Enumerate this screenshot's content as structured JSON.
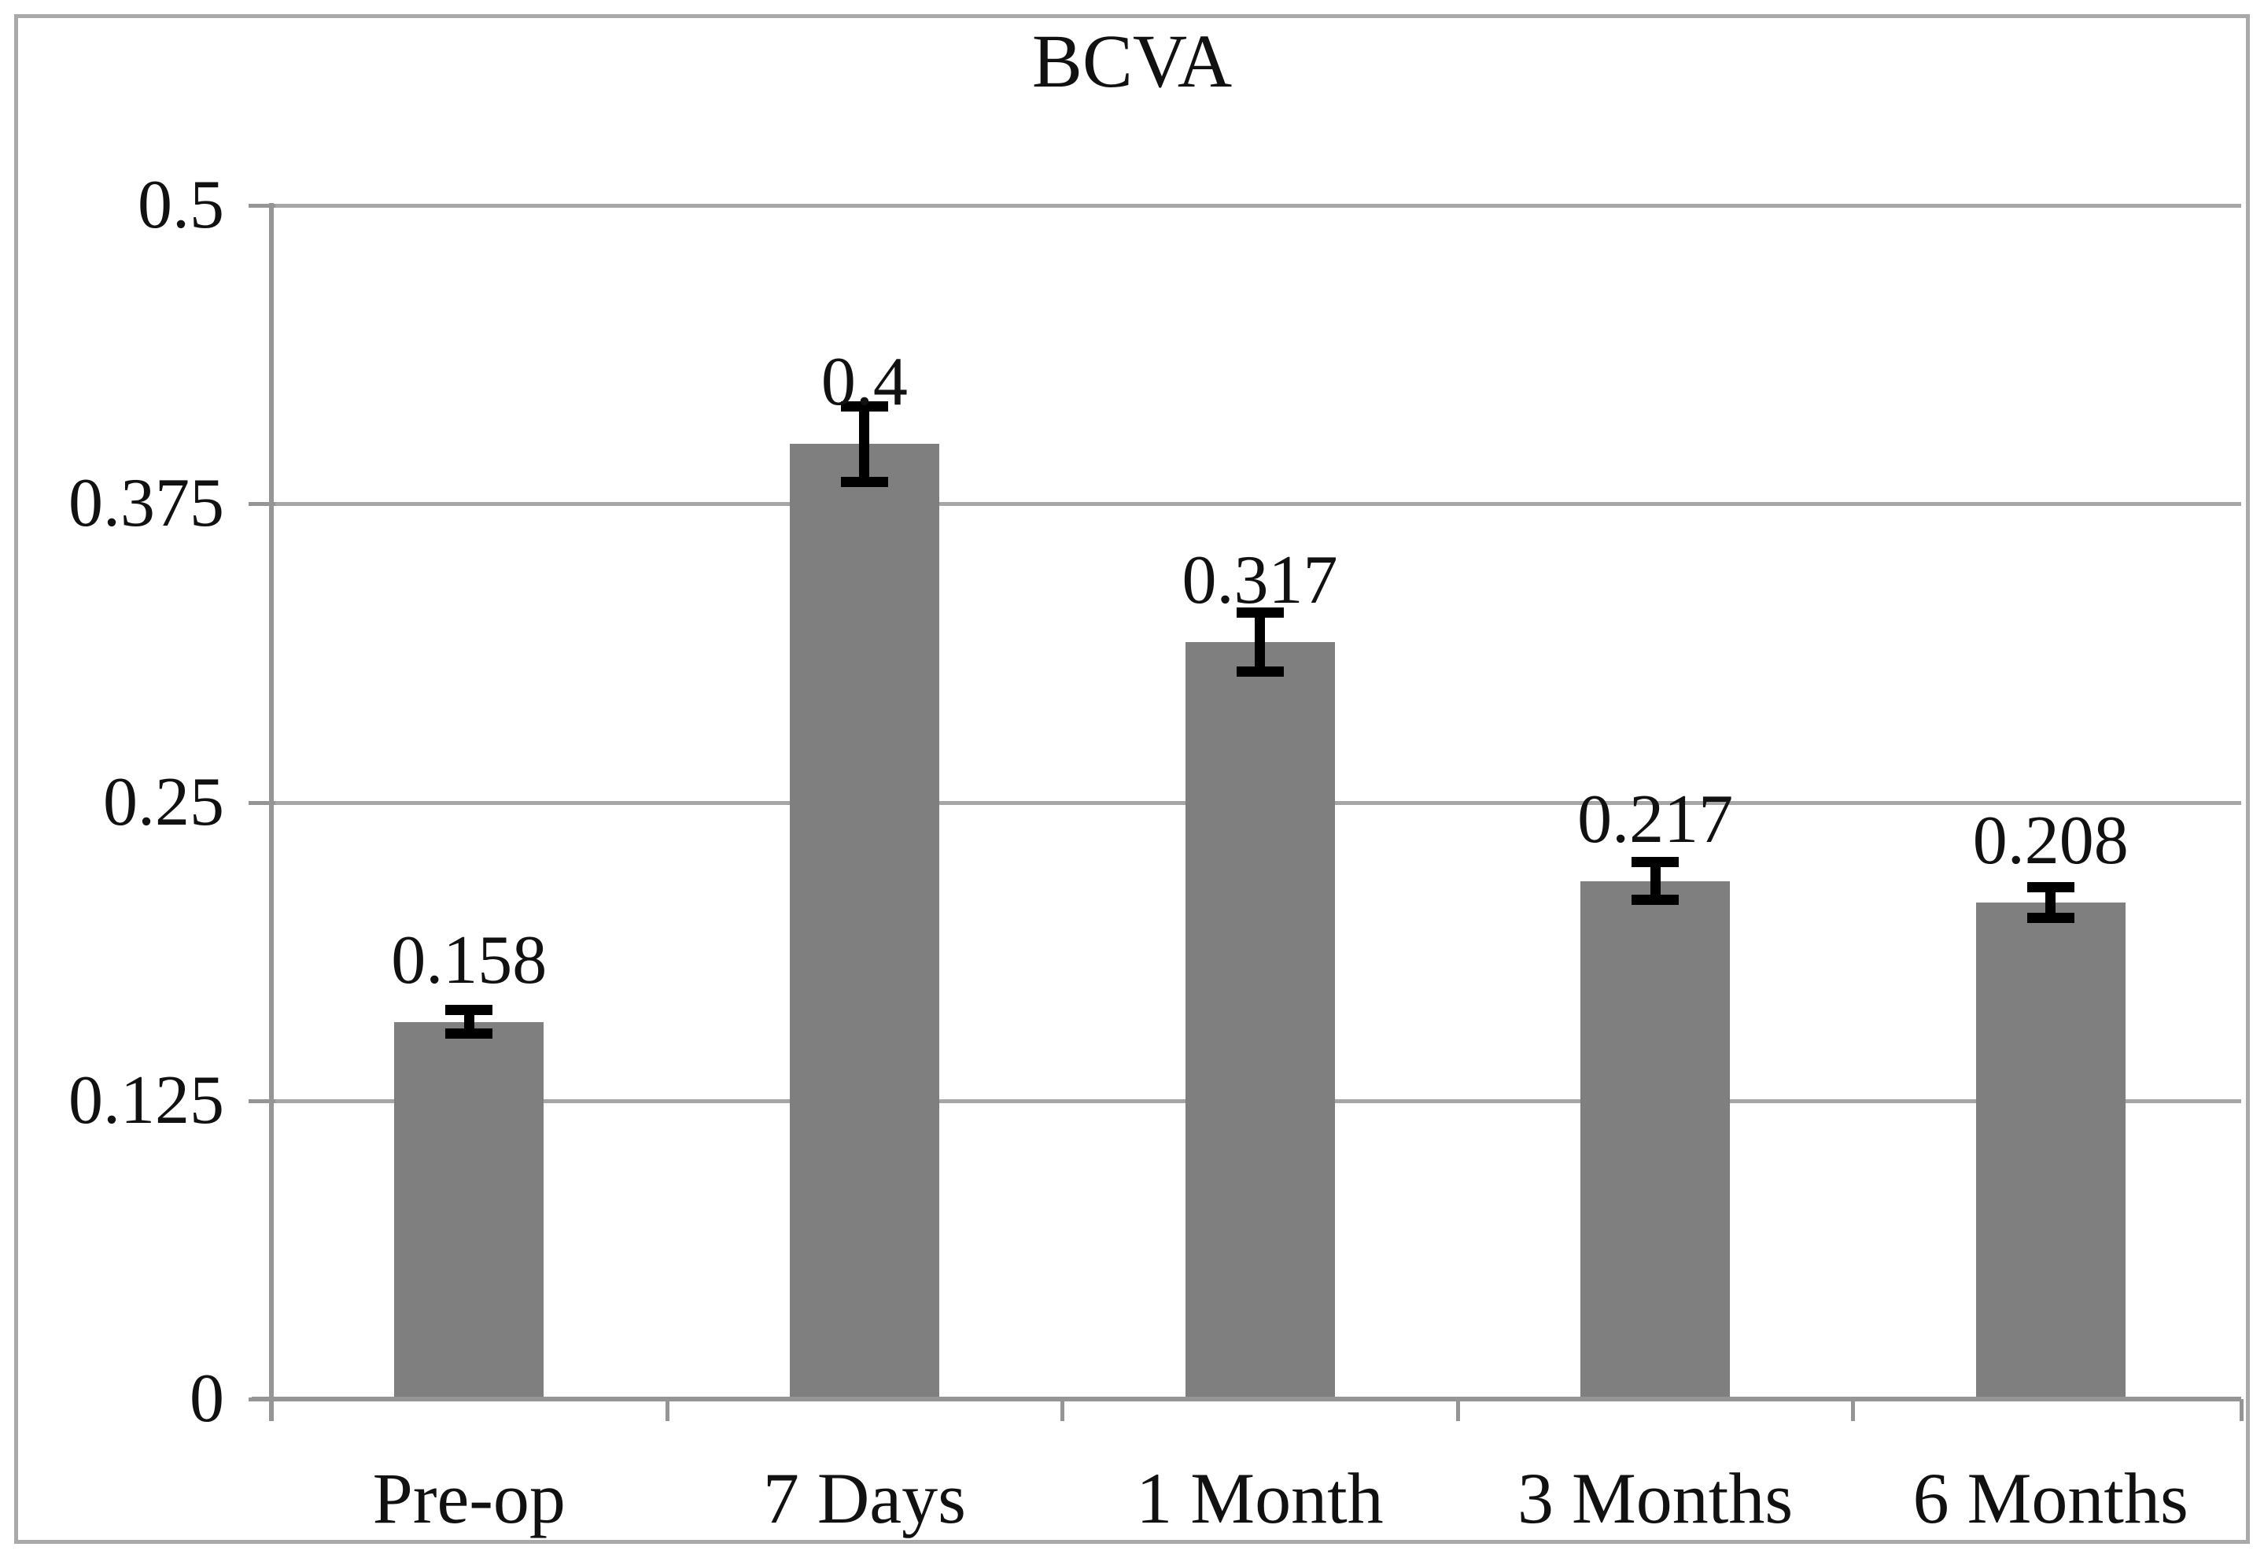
{
  "title": "BCVA",
  "chart_data": {
    "type": "bar",
    "title": "BCVA",
    "categories": [
      "Pre-op",
      "7 Days",
      "1 Month",
      "3 Months",
      "6 Months"
    ],
    "values": [
      0.158,
      0.4,
      0.317,
      0.217,
      0.208
    ],
    "data_labels": [
      "0.158",
      "0.4",
      "0.317",
      "0.217",
      "0.208"
    ],
    "error_bars": [
      0.007,
      0.018,
      0.0145,
      0.01,
      0.0085
    ],
    "y_tick_labels": [
      "0.5",
      "0.375",
      "0.25",
      "0.125",
      "0"
    ],
    "y_tick_values": [
      0.5,
      0.375,
      0.25,
      0.125,
      0
    ],
    "ylim": [
      0,
      0.5
    ],
    "xlabel": "",
    "ylabel": "",
    "grid": true,
    "legend": "none",
    "series_count": 1,
    "colors": {
      "bar_fill": "#7f7f7f",
      "gridline": "#a6a6a6",
      "axis": "#959595",
      "frame_border": "#a9a9a9",
      "error_bar": "#000000",
      "text": "#111111",
      "background": "#ffffff"
    }
  }
}
